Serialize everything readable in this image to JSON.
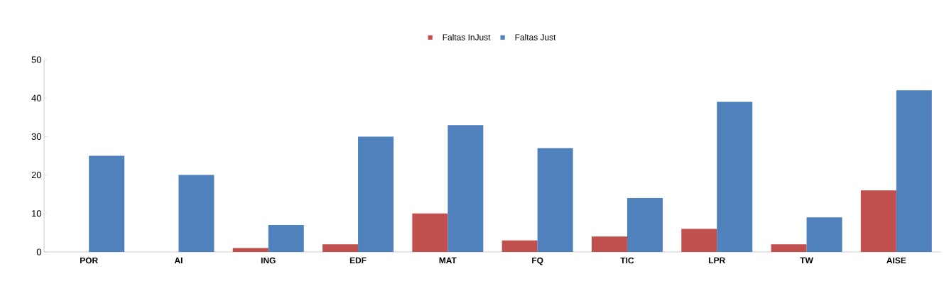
{
  "chart_data": {
    "type": "bar",
    "categories": [
      "POR",
      "AI",
      "ING",
      "EDF",
      "MAT",
      "FQ",
      "TIC",
      "LPR",
      "TW",
      "AISE"
    ],
    "series": [
      {
        "name": "Faltas InJust",
        "color": "#c0504d",
        "values": [
          0,
          0,
          1,
          2,
          10,
          3,
          4,
          6,
          2,
          16
        ]
      },
      {
        "name": "Faltas Just",
        "color": "#4f81bd",
        "values": [
          25,
          20,
          7,
          30,
          33,
          27,
          14,
          39,
          9,
          42
        ]
      }
    ],
    "ylim": [
      0,
      50
    ],
    "yticks": [
      0,
      10,
      20,
      30,
      40,
      50
    ],
    "legend": "top",
    "grid": false
  }
}
